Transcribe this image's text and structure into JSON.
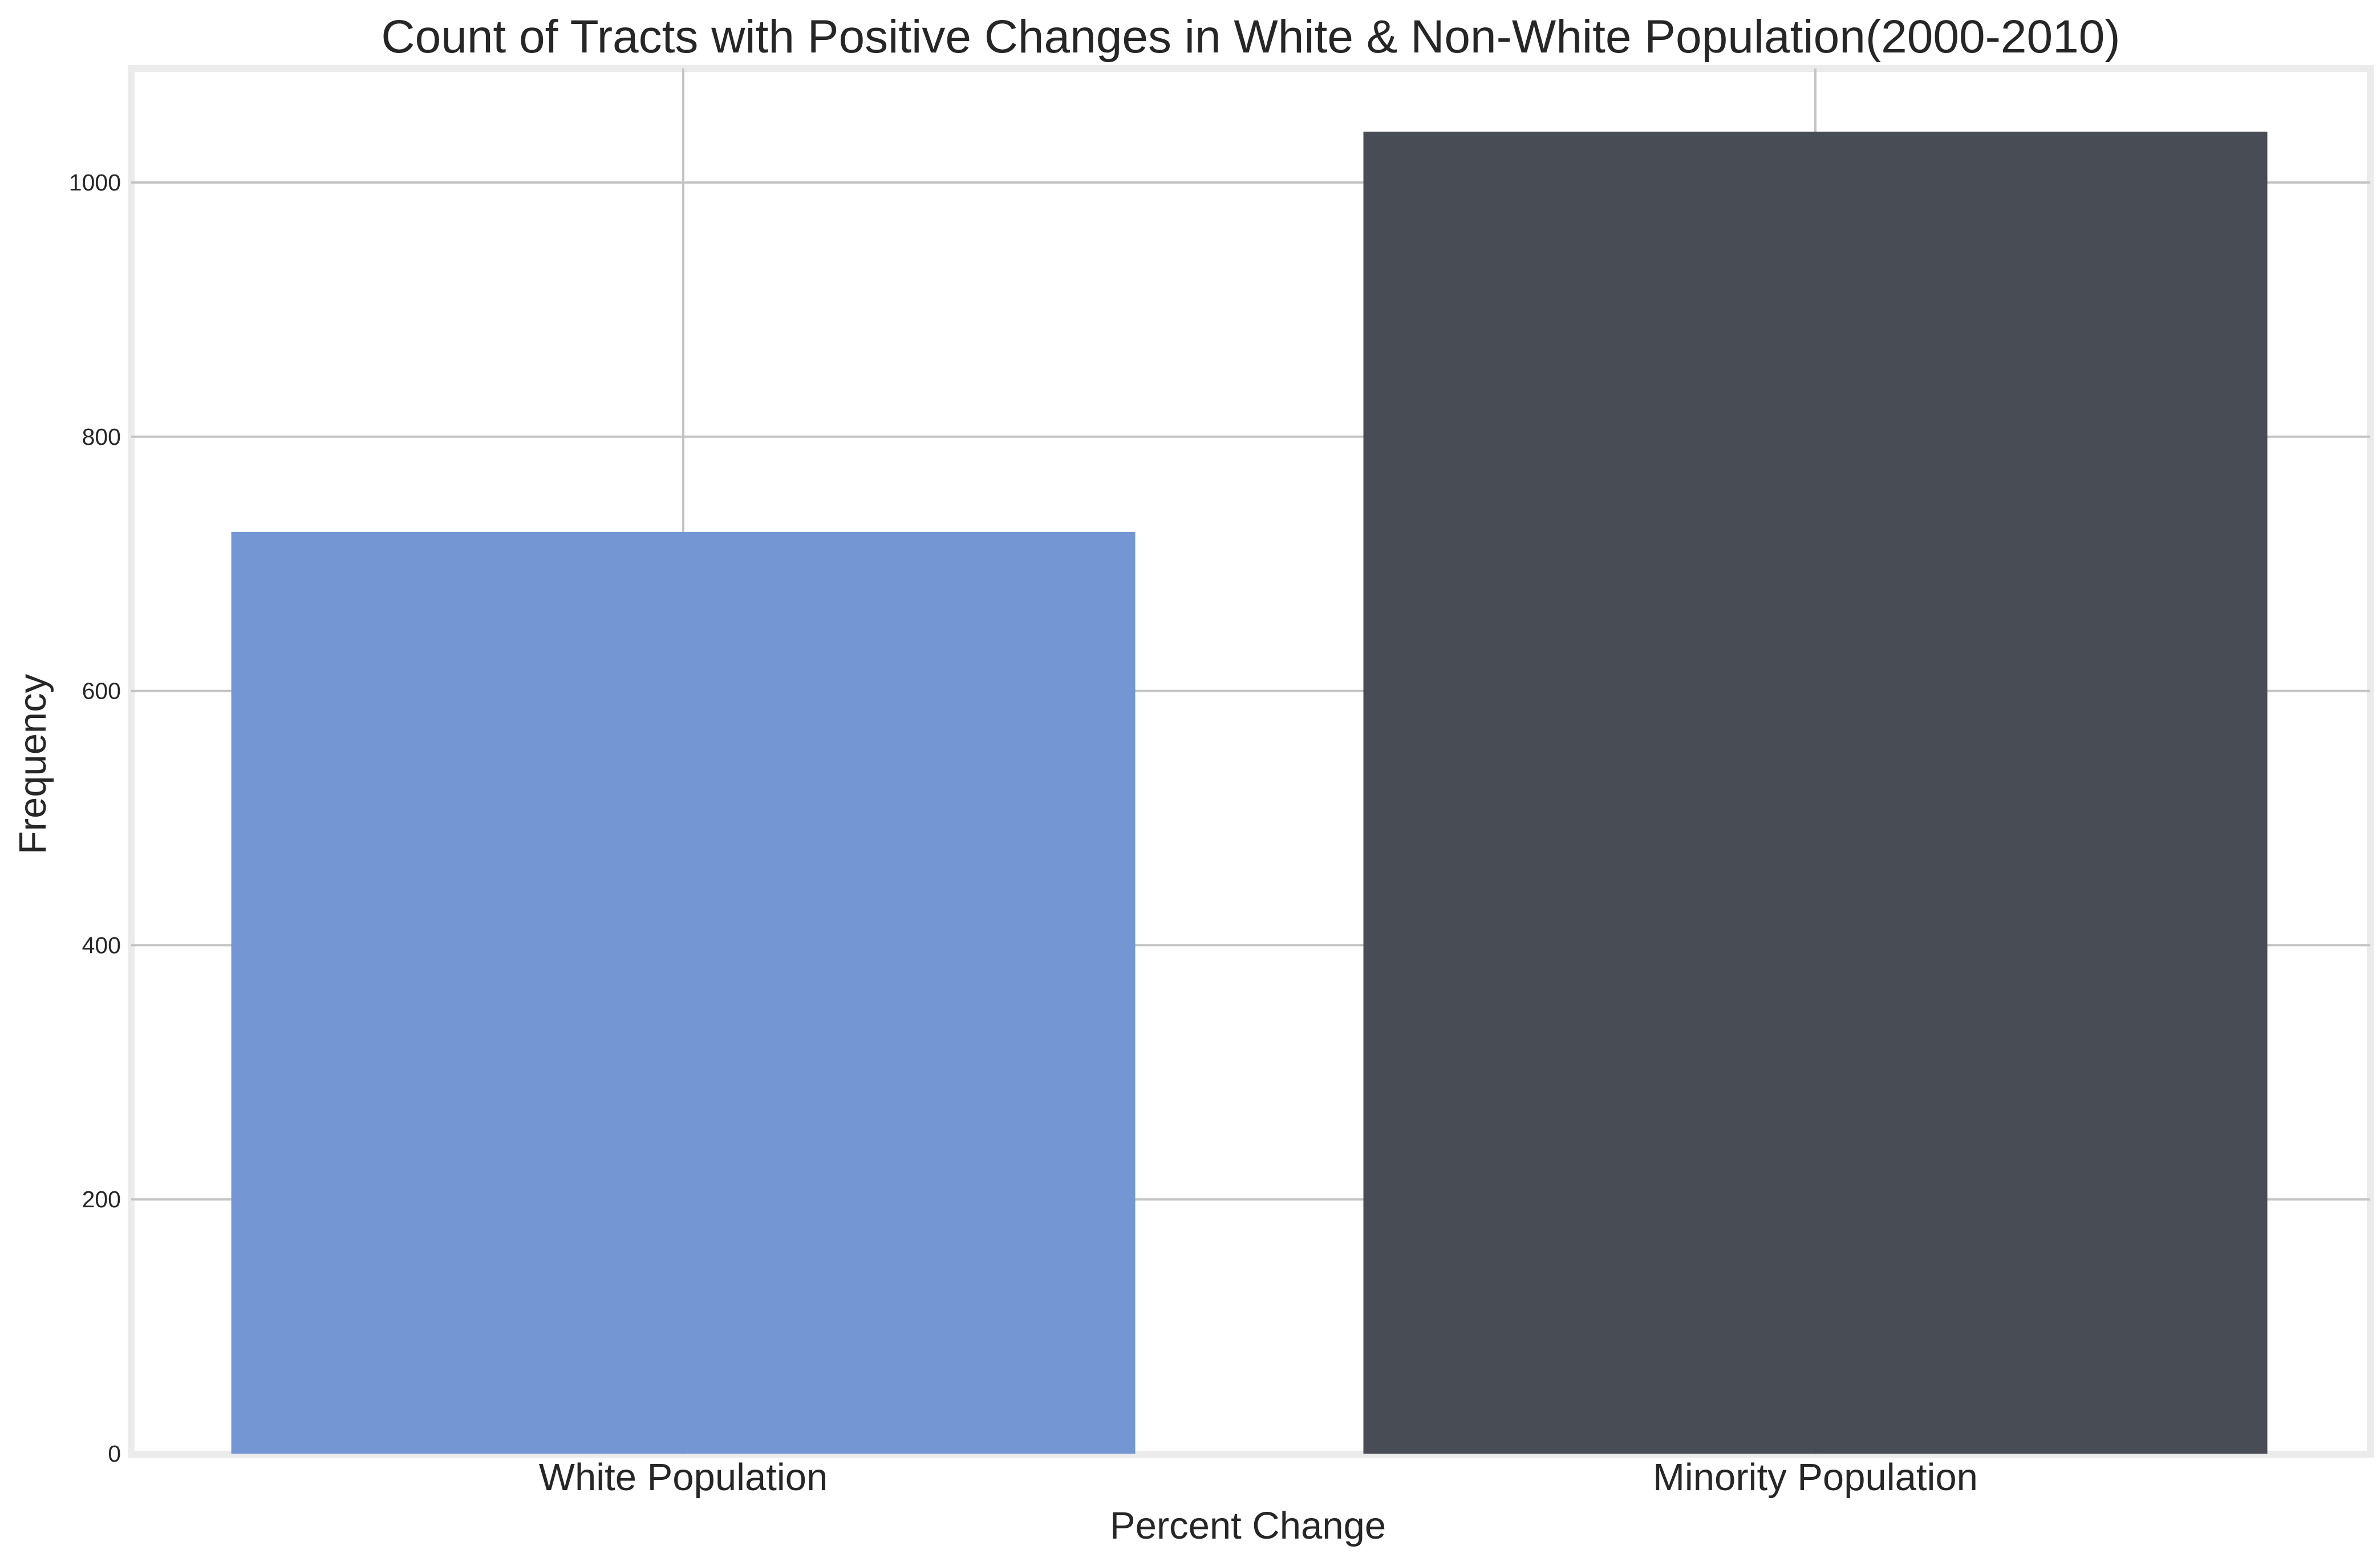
{
  "chart_data": {
    "type": "bar",
    "title": "Count of Tracts with Positive Changes in White & Non-White Population(2000-2010)",
    "xlabel": "Percent Change",
    "ylabel": "Frequency",
    "categories": [
      "White Population",
      "Minority Population"
    ],
    "values": [
      725,
      1040
    ],
    "colors": [
      "#7497d3",
      "#484c55"
    ],
    "ylim": [
      0,
      1090
    ],
    "yticks": [
      0,
      200,
      400,
      600,
      800,
      1000
    ],
    "grid": true,
    "legend": "none"
  }
}
